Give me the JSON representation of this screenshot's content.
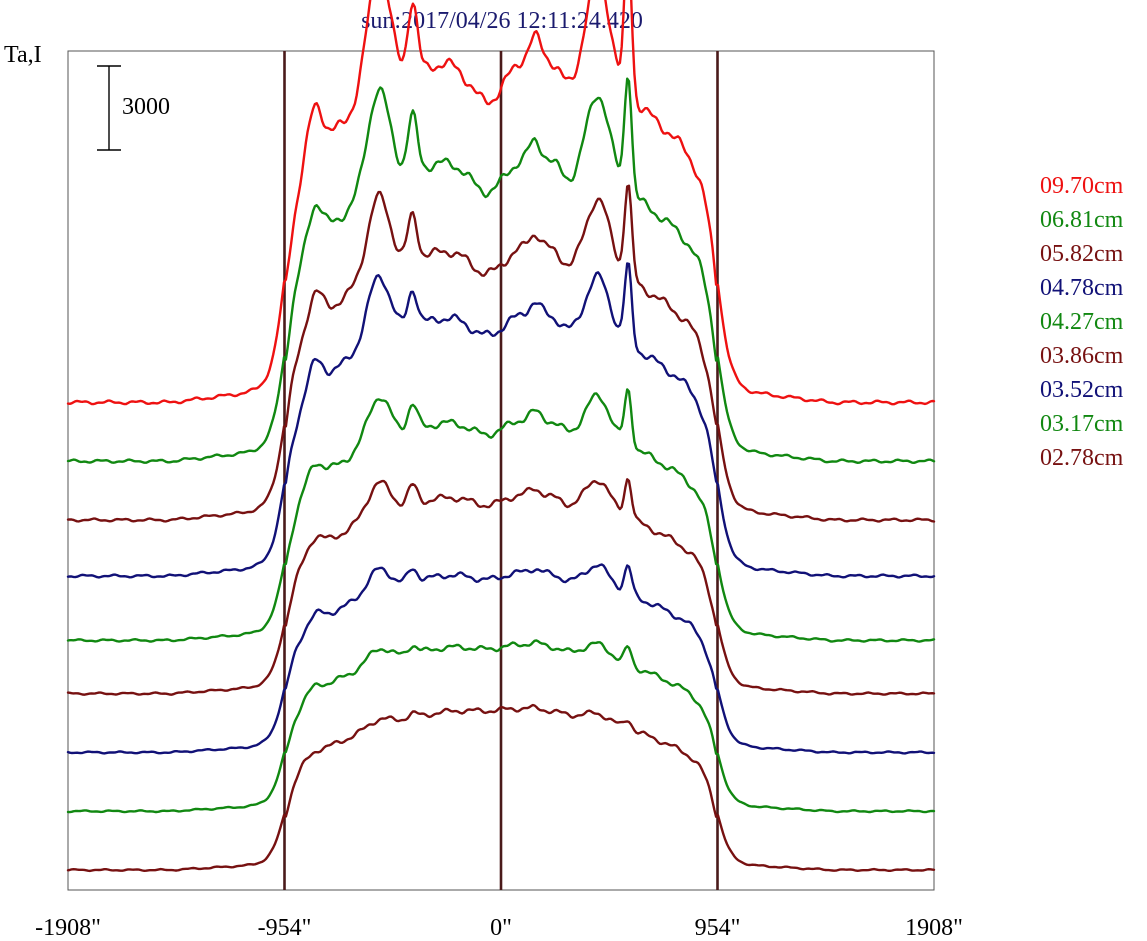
{
  "chart_data": {
    "type": "line",
    "title": "sun:2017/04/26 12:11:24.420",
    "ylabel": "Ta,I",
    "scale_bar_label": "3000",
    "scale_bar_value": 3000,
    "xlim": [
      -1908,
      1908
    ],
    "x_ticks": [
      -1908,
      -954,
      0,
      954,
      1908
    ],
    "x_tick_labels": [
      "-1908\"",
      "-954\"",
      "0\"",
      "954\"",
      "1908\""
    ],
    "vertical_markers": [
      -954,
      0,
      954
    ],
    "grid": false,
    "legend_placement": "right",
    "series": [
      {
        "name": "09.70cm",
        "color": "#ee1111",
        "baseline": 15700,
        "peak": 12500
      },
      {
        "name": "06.81cm",
        "color": "#118811",
        "baseline": 13600,
        "peak": 11000
      },
      {
        "name": "05.82cm",
        "color": "#771111",
        "baseline": 11500,
        "peak": 9900
      },
      {
        "name": "04.78cm",
        "color": "#111177",
        "baseline": 9500,
        "peak": 9500
      },
      {
        "name": "04.27cm",
        "color": "#118811",
        "baseline": 7200,
        "peak": 8000
      },
      {
        "name": "03.86cm",
        "color": "#771111",
        "baseline": 5300,
        "peak": 7200
      },
      {
        "name": "03.52cm",
        "color": "#111177",
        "baseline": 3200,
        "peak": 6500
      },
      {
        "name": "03.17cm",
        "color": "#118811",
        "baseline": 1100,
        "peak": 6000
      },
      {
        "name": "02.78cm",
        "color": "#771111",
        "baseline": -1000,
        "peak": 5800
      }
    ]
  }
}
